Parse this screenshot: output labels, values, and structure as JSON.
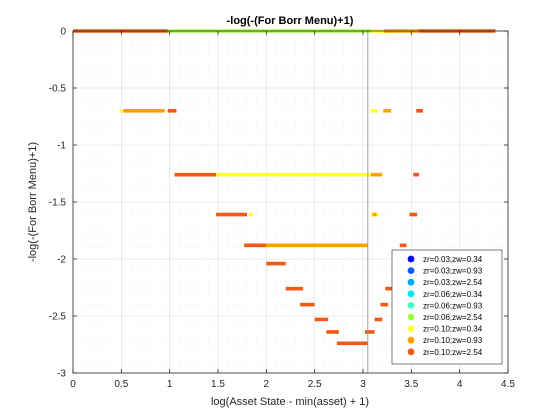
{
  "chart_data": {
    "type": "scatter",
    "title": "-log(-(For Borr Menu)+1)",
    "xlabel": "log(Asset State - min(asset) + 1)",
    "ylabel": "-log(-(For Borr Menu)+1)",
    "xlim": [
      0,
      4.5
    ],
    "ylim": [
      -3,
      0
    ],
    "xticks": [
      0,
      0.5,
      1,
      1.5,
      2,
      2.5,
      3,
      3.5,
      4,
      4.5
    ],
    "xtick_labels": [
      "0",
      "0.5",
      "1",
      "1.5",
      "2",
      "2.5",
      "3",
      "3.5",
      "4",
      "4.5"
    ],
    "yticks": [
      0,
      -0.5,
      -1,
      -1.5,
      -2,
      -2.5,
      -3
    ],
    "ytick_labels": [
      "0",
      "-0.5",
      "-1",
      "-1.5",
      "-2",
      "-2.5",
      "-3"
    ],
    "grid": true,
    "minor_grid": true,
    "legend_position": "bottom-right",
    "vline_x": 3.05,
    "series": [
      {
        "name": "zr=0.03;zw=0.34",
        "color": "#0000ff",
        "segments": []
      },
      {
        "name": "zr=0.03;zw=0.93",
        "color": "#0a5cff",
        "segments": []
      },
      {
        "name": "zr=0.03;zw=2.54",
        "color": "#00aaff",
        "segments": []
      },
      {
        "name": "zr=0.06;zw=0.34",
        "color": "#00e6ff",
        "segments": []
      },
      {
        "name": "zr=0.06;zw=0.93",
        "color": "#40ffc0",
        "segments": []
      },
      {
        "name": "zr=0.06;zw=2.54",
        "color": "#9cff3a",
        "segments": [
          [
            0.98,
            3.08,
            0
          ]
        ]
      },
      {
        "name": "zr=0.10;zw=0.34",
        "color": "#ffff33",
        "segments": [
          [
            3.08,
            3.24,
            0
          ],
          [
            0.48,
            0.52,
            -0.7
          ],
          [
            3.08,
            3.15,
            -0.7
          ],
          [
            1.48,
            3.08,
            -1.26
          ],
          [
            1.82,
            1.86,
            -1.61
          ],
          [
            3.08,
            3.16,
            -1.61
          ]
        ]
      },
      {
        "name": "zr=0.10;zw=0.93",
        "color": "#ffa200",
        "segments": [
          [
            3.22,
            3.36,
            0
          ],
          [
            3.36,
            3.58,
            0
          ],
          [
            0.52,
            0.95,
            -0.7
          ],
          [
            3.21,
            3.29,
            -0.7
          ],
          [
            3.08,
            3.2,
            -1.26
          ],
          [
            3.1,
            3.14,
            -1.61
          ],
          [
            2.0,
            3.05,
            -1.88
          ]
        ]
      },
      {
        "name": "zr=0.10;zw=2.54",
        "color": "#f05a14",
        "segments": [
          [
            0,
            0.98,
            0
          ],
          [
            3.58,
            4.37,
            0
          ],
          [
            0.98,
            1.07,
            -0.7
          ],
          [
            3.55,
            3.62,
            -0.7
          ],
          [
            1.05,
            1.48,
            -1.26
          ],
          [
            3.52,
            3.58,
            -1.26
          ],
          [
            1.48,
            1.8,
            -1.61
          ],
          [
            3.48,
            3.56,
            -1.61
          ],
          [
            1.77,
            2.0,
            -1.88
          ],
          [
            3.38,
            3.45,
            -1.88
          ],
          [
            2.0,
            2.2,
            -2.04
          ],
          [
            2.2,
            2.38,
            -2.26
          ],
          [
            2.35,
            2.5,
            -2.4
          ],
          [
            2.5,
            2.64,
            -2.53
          ],
          [
            2.62,
            2.75,
            -2.64
          ],
          [
            2.73,
            3.05,
            -2.74
          ],
          [
            3.02,
            3.12,
            -2.64
          ],
          [
            3.12,
            3.2,
            -2.53
          ],
          [
            3.18,
            3.26,
            -2.4
          ],
          [
            3.23,
            3.3,
            -2.26
          ]
        ]
      }
    ]
  }
}
